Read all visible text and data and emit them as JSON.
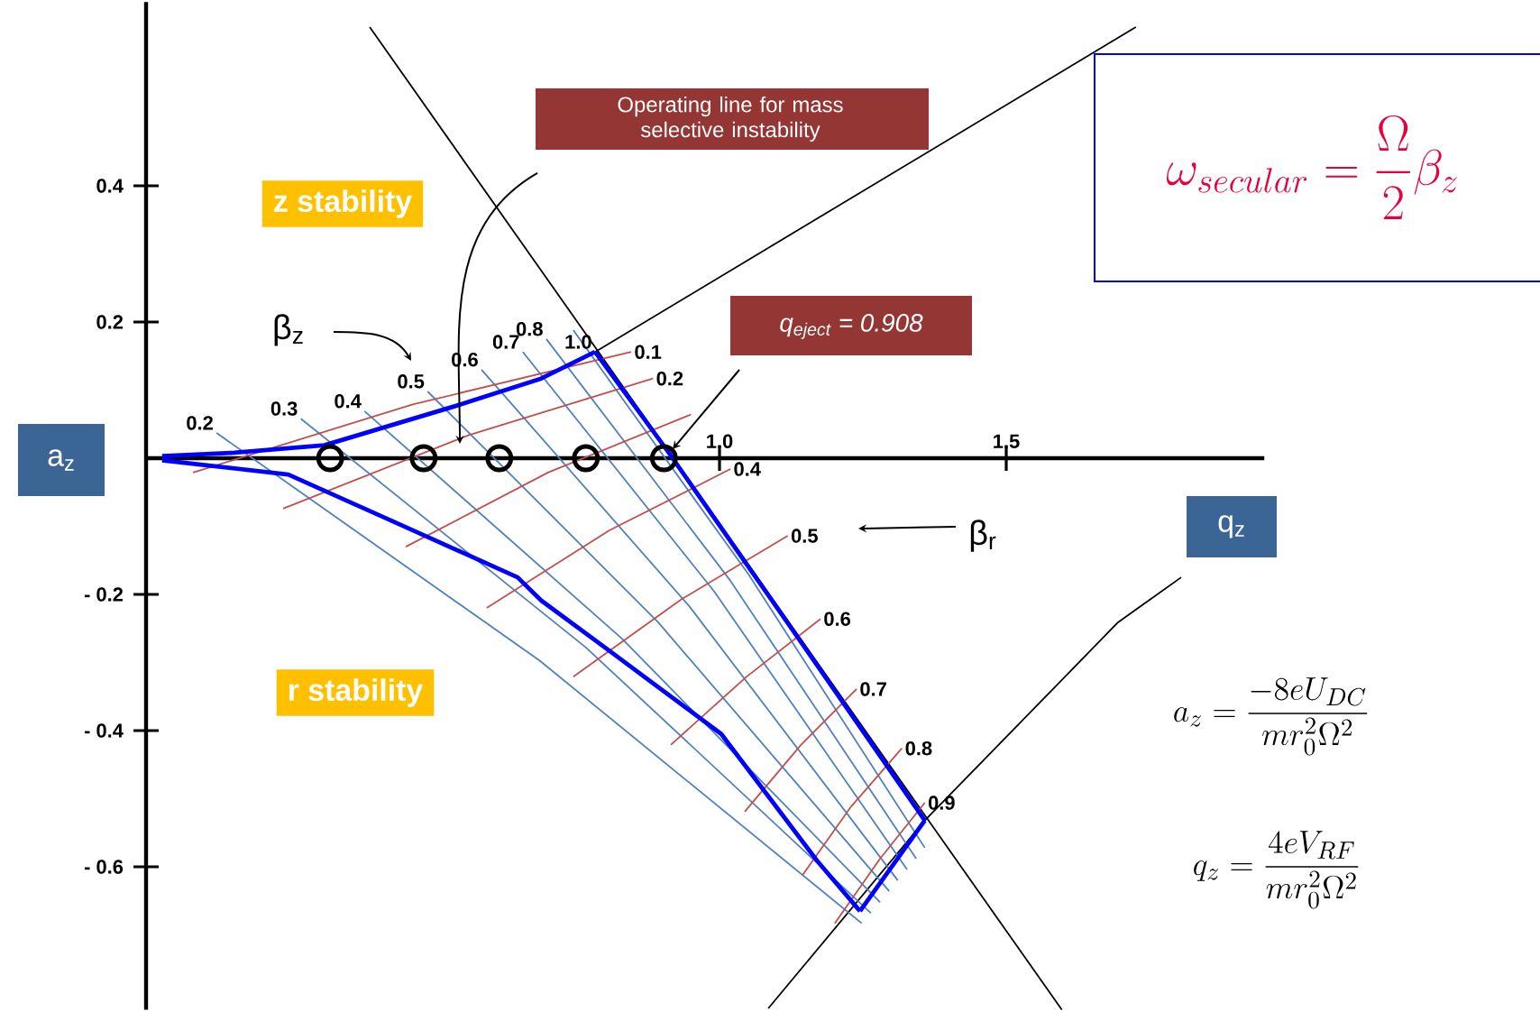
{
  "chart_data": {
    "type": "line",
    "xlabel": "q$_{z}$",
    "ylabel": "a$_{z}$",
    "xlim": [
      0,
      1.95
    ],
    "ylim": [
      -0.81,
      0.67
    ],
    "xticks": [
      {
        "value": 1,
        "label": "1.0"
      },
      {
        "value": 1.5,
        "label": "1.5"
      }
    ],
    "yticks": [
      0.4,
      0.2,
      {
        "value": -0.2,
        "label": "- 0.2"
      },
      {
        "value": -0.4,
        "label": "- 0.4"
      },
      {
        "value": -0.6,
        "label": "- 0.6"
      }
    ],
    "series": [
      {
        "color": "#000000",
        "x": [
          0.39,
          1.597
        ],
        "values": [
          0.633,
          -0.81
        ]
      },
      {
        "color": "#000000",
        "x": [
          0.783,
          1.726
        ],
        "values": [
          0.156,
          0.633
        ]
      },
      {
        "color": "#000000",
        "x": [
          1.085,
          1.358,
          1.695,
          1.805
        ],
        "values": [
          -0.808,
          -0.532,
          -0.241,
          -0.175
        ]
      },
      {
        "name": "0.2",
        "color": "#4f81bd",
        "x": [
          0.123,
          0.686,
          1.248
        ],
        "values": [
          0.037,
          -0.297,
          -0.683
        ]
      },
      {
        "name": "0.3",
        "color": "#4f81bd",
        "x": [
          0.27,
          0.767,
          1.264
        ],
        "values": [
          0.058,
          -0.278,
          -0.668
        ]
      },
      {
        "name": "0.4",
        "color": "#4f81bd",
        "x": [
          0.381,
          0.83,
          1.28
        ],
        "values": [
          0.069,
          -0.265,
          -0.652
        ]
      },
      {
        "name": "0.5",
        "color": "#4f81bd",
        "x": [
          0.491,
          0.893,
          1.296
        ],
        "values": [
          0.098,
          -0.241,
          -0.636
        ]
      },
      {
        "name": "0.6",
        "color": "#4f81bd",
        "x": [
          0.585,
          0.947,
          1.311
        ],
        "values": [
          0.13,
          -0.217,
          -0.62
        ]
      },
      {
        "name": "0.7",
        "color": "#4f81bd",
        "x": [
          0.657,
          0.991,
          1.327
        ],
        "values": [
          0.156,
          -0.196,
          -0.604
        ]
      },
      {
        "name": "0.8",
        "color": "#4f81bd",
        "x": [
          0.698,
          1.019,
          1.343
        ],
        "values": [
          0.175,
          -0.18,
          -0.588
        ]
      },
      {
        "color": "#4f81bd",
        "x": [
          0.745,
          1.05,
          1.358
        ],
        "values": [
          0.188,
          -0.17,
          -0.572
        ]
      },
      {
        "name": "0.1",
        "color": "#c0504d",
        "x": [
          0.082,
          0.465,
          0.846
        ],
        "values": [
          -0.021,
          0.079,
          0.156
        ]
      },
      {
        "name": "0.2",
        "color": "#c0504d",
        "x": [
          0.239,
          0.563,
          0.884
        ],
        "values": [
          -0.074,
          0.034,
          0.117
        ]
      },
      {
        "color": "#c0504d",
        "x": [
          0.453,
          0.701,
          0.95
        ],
        "values": [
          -0.13,
          -0.021,
          0.064
        ]
      },
      {
        "name": "0.4",
        "color": "#c0504d",
        "x": [
          0.594,
          0.808,
          1.019
        ],
        "values": [
          -0.22,
          -0.106,
          -0.016
        ]
      },
      {
        "name": "0.5",
        "color": "#c0504d",
        "x": [
          0.745,
          0.934,
          1.119
        ],
        "values": [
          -0.321,
          -0.207,
          -0.114
        ]
      },
      {
        "name": "0.6",
        "color": "#c0504d",
        "x": [
          0.915,
          1.047,
          1.176
        ],
        "values": [
          -0.421,
          -0.321,
          -0.236
        ]
      },
      {
        "name": "0.7",
        "color": "#c0504d",
        "x": [
          1.044,
          1.142,
          1.239
        ],
        "values": [
          -0.519,
          -0.421,
          -0.339
        ]
      },
      {
        "name": "0.8",
        "color": "#c0504d",
        "x": [
          1.145,
          1.23,
          1.318
        ],
        "values": [
          -0.612,
          -0.511,
          -0.426
        ]
      },
      {
        "name": "0.9",
        "color": "#c0504d",
        "x": [
          1.201,
          1.28,
          1.358
        ],
        "values": [
          -0.683,
          -0.588,
          -0.506
        ]
      },
      {
        "color": "#0000ff",
        "x": [
          0.028,
          0.154,
          0.311,
          0.541,
          0.689,
          0.783
        ],
        "values": [
          0.003,
          0.008,
          0.019,
          0.077,
          0.117,
          0.156
        ]
      },
      {
        "name": "1.0",
        "color": "#0000ff",
        "x": [
          0.783,
          0.909,
          1.129,
          1.358
        ],
        "values": [
          0.156,
          0.011,
          -0.254,
          -0.532
        ]
      },
      {
        "color": "#0000ff",
        "x": [
          1.358,
          1.245
        ],
        "values": [
          -0.532,
          -0.665
        ]
      },
      {
        "color": "#0000ff",
        "x": [
          0.028,
          0.248,
          0.415,
          0.648,
          0.689,
          0.805,
          1.003,
          1.17,
          1.245
        ],
        "values": [
          -0.003,
          -0.024,
          -0.087,
          -0.175,
          -0.209,
          -0.281,
          -0.405,
          -0.591,
          -0.665
        ]
      },
      {
        "type": "scatter",
        "marker": "circle",
        "color": "#000000",
        "x": [
          0.321,
          0.484,
          0.616,
          0.767,
          0.903
        ],
        "values": [
          0,
          0,
          0,
          0,
          0
        ]
      }
    ],
    "annotations": [
      "z stability",
      "r stability",
      "Operating line for mass selective instability",
      "q$_{eject}$ = 0.908",
      "β$_{z}$",
      "β$_{r}$",
      "\\omega_{secular} = \\frac{\\Omega}{2}\\beta_z",
      "a_z = \\frac{-8eU_{DC}}{m r_0^2 \\Omega^2}",
      "q_z = \\frac{4eV_{RF}}{m r_0^2 \\Omega^2}"
    ]
  }
}
